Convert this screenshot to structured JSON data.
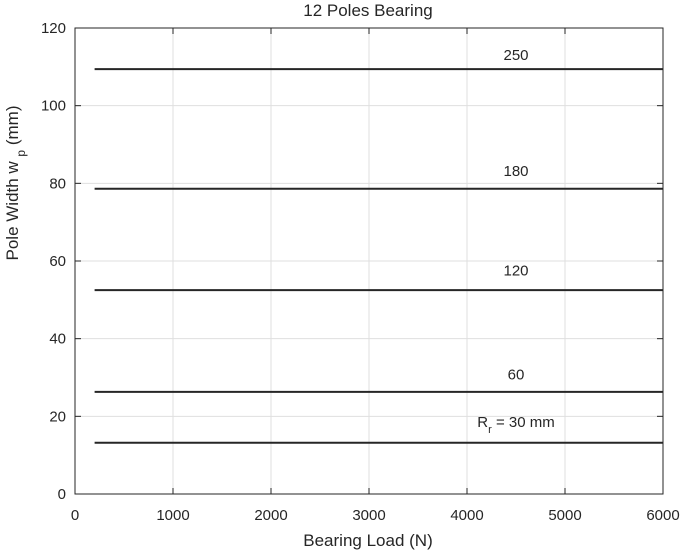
{
  "chart_data": {
    "type": "line",
    "title": "12 Poles Bearing",
    "xlabel": "Bearing Load (N)",
    "ylabel": {
      "main": "Pole Width w",
      "subscript": "p",
      "unit": " (mm)"
    },
    "xlim": [
      0,
      6000
    ],
    "ylim": [
      0,
      120
    ],
    "xticks": [
      0,
      1000,
      2000,
      3000,
      4000,
      5000,
      6000
    ],
    "yticks": [
      0,
      20,
      40,
      60,
      80,
      100,
      120
    ],
    "grid": true,
    "line_color": "#262626",
    "grid_color": "#dfdfdf",
    "series": [
      {
        "label_main": "R",
        "label_sub": "r",
        "label_rest": " = 30 mm",
        "label_x": 4500,
        "label_y": 17.3,
        "x": [
          200,
          6000
        ],
        "y": [
          13.2,
          13.2
        ]
      },
      {
        "label_main": "60",
        "label_x": 4500,
        "label_y": 29.5,
        "x": [
          200,
          6000
        ],
        "y": [
          26.3,
          26.3
        ]
      },
      {
        "label_main": "120",
        "label_x": 4500,
        "label_y": 56.3,
        "x": [
          200,
          6000
        ],
        "y": [
          52.5,
          52.5
        ]
      },
      {
        "label_main": "180",
        "label_x": 4500,
        "label_y": 81.9,
        "x": [
          200,
          6000
        ],
        "y": [
          78.6,
          78.6
        ]
      },
      {
        "label_main": "250",
        "label_x": 4500,
        "label_y": 111.8,
        "x": [
          200,
          6000
        ],
        "y": [
          109.4,
          109.4
        ]
      }
    ]
  }
}
